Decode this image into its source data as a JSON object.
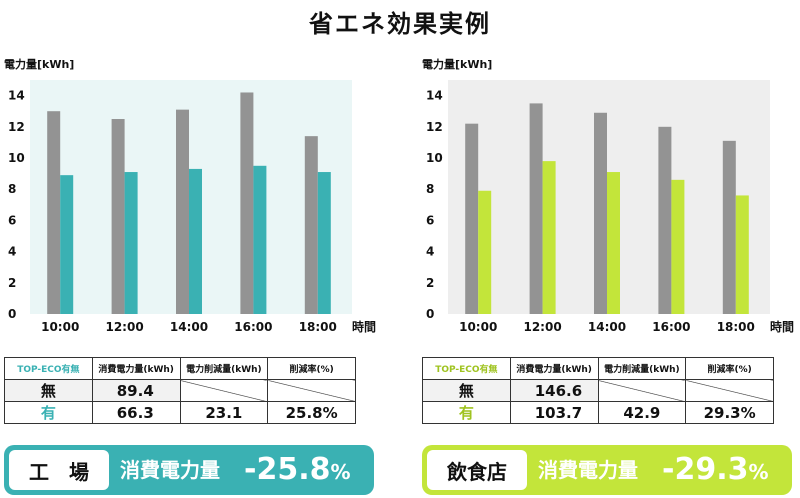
{
  "title": "省エネ効果実例",
  "table_headers": [
    "TOP-ECO有無",
    "消費電力量(kWh)",
    "電力削減量(kWh)",
    "削減率(%)"
  ],
  "row_labels": [
    "無",
    "有"
  ],
  "colors": {
    "gray_bar": "#939393",
    "left_accent": "#3ab1b3",
    "left_bg": "#eaf6f6",
    "right_accent": "#c3e53a",
    "right_bg": "#eeeeee"
  },
  "chart_data": [
    {
      "type": "bar",
      "ylabel": "電力量[kWh]",
      "xlabel": "時間",
      "categories": [
        "10:00",
        "12:00",
        "14:00",
        "16:00",
        "18:00"
      ],
      "yticks": [
        0,
        2,
        4,
        6,
        8,
        10,
        12,
        14
      ],
      "ylim": [
        0,
        15
      ],
      "series": [
        {
          "color": "#939393",
          "values": [
            13.0,
            12.5,
            13.1,
            14.2,
            11.4
          ]
        },
        {
          "color": "#3ab1b3",
          "values": [
            8.9,
            9.1,
            9.3,
            9.5,
            9.1
          ]
        }
      ],
      "grid": false
    },
    {
      "type": "bar",
      "ylabel": "電力量[kWh]",
      "xlabel": "時間",
      "categories": [
        "10:00",
        "12:00",
        "14:00",
        "16:00",
        "18:00"
      ],
      "yticks": [
        0,
        2,
        4,
        6,
        8,
        10,
        12,
        14
      ],
      "ylim": [
        0,
        15
      ],
      "series": [
        {
          "color": "#939393",
          "values": [
            12.2,
            13.5,
            12.9,
            12.0,
            11.1
          ]
        },
        {
          "color": "#c3e53a",
          "values": [
            7.9,
            9.8,
            9.1,
            8.6,
            7.6
          ]
        }
      ],
      "grid": false
    }
  ],
  "panels": [
    {
      "table": {
        "none": {
          "consumption": "89.4"
        },
        "with": {
          "consumption": "66.3",
          "reduction": "23.1",
          "rate": "25.8%"
        }
      },
      "banner": {
        "place": "工　場",
        "label": "消費電力量",
        "value": "-25.8",
        "unit": "%"
      }
    },
    {
      "table": {
        "none": {
          "consumption": "146.6"
        },
        "with": {
          "consumption": "103.7",
          "reduction": "42.9",
          "rate": "29.3%"
        }
      },
      "banner": {
        "place": "飲食店",
        "label": "消費電力量",
        "value": "-29.3",
        "unit": "%"
      }
    }
  ]
}
